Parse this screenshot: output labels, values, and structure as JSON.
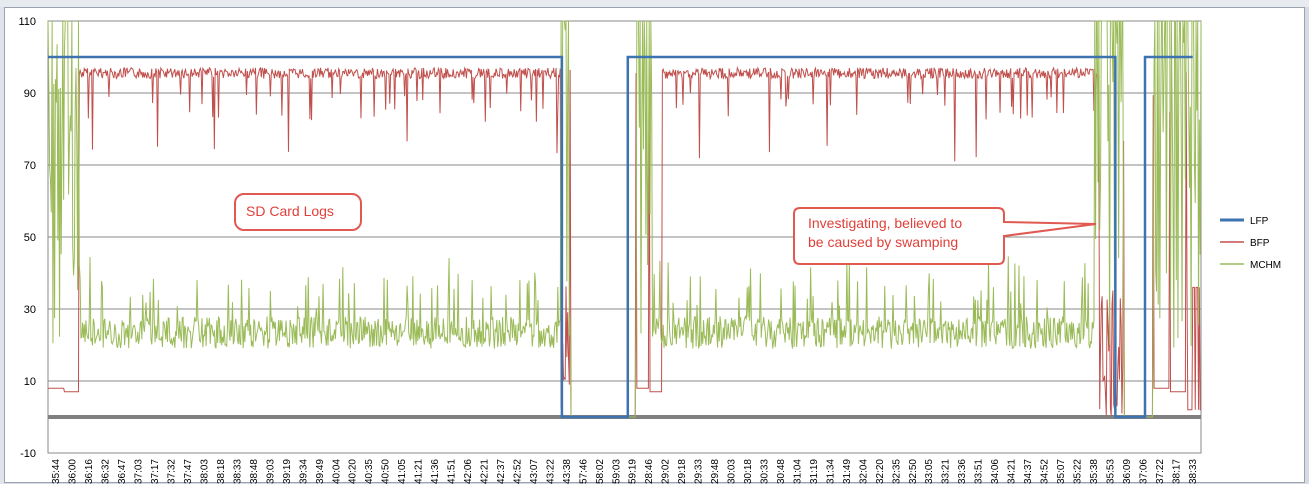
{
  "chart_data": {
    "type": "line",
    "ylim": [
      -10,
      110
    ],
    "yticks": [
      "110",
      "90",
      "70",
      "50",
      "30",
      "10",
      "-10"
    ],
    "ytick_values": [
      110,
      90,
      70,
      50,
      30,
      10,
      -10
    ],
    "x_labels": [
      "18:35:44",
      "18:36:00",
      "18:36:16",
      "18:36:32",
      "18:36:47",
      "18:37:03",
      "18:37:17",
      "18:37:32",
      "18:37:47",
      "18:38:03",
      "18:38:18",
      "18:38:33",
      "18:38:48",
      "18:39:03",
      "18:39:19",
      "18:39:34",
      "18:39:49",
      "18:40:04",
      "18:40:20",
      "18:40:35",
      "18:40:50",
      "18:41:05",
      "18:41:21",
      "18:41:36",
      "18:41:51",
      "18:42:06",
      "18:42:21",
      "18:42:37",
      "18:42:52",
      "18:43:07",
      "18:43:22",
      "18:43:38",
      "18:57:46",
      "18:58:02",
      "18:59:03",
      "18:59:19",
      "19:28:46",
      "19:29:02",
      "19:29:18",
      "19:29:33",
      "19:29:48",
      "19:30:03",
      "19:30:18",
      "19:30:33",
      "19:30:48",
      "19:31:04",
      "19:31:19",
      "19:31:34",
      "19:31:49",
      "19:32:04",
      "19:32:20",
      "19:32:35",
      "19:32:50",
      "19:33:05",
      "19:33:21",
      "19:33:36",
      "19:33:51",
      "19:34:06",
      "19:34:21",
      "19:34:37",
      "19:34:52",
      "19:35:07",
      "19:35:22",
      "19:35:38",
      "19:35:53",
      "19:36:09",
      "19:37:06",
      "19:37:22",
      "19:38:17",
      "19:38:33"
    ],
    "series": [
      {
        "name": "LFP",
        "color": "#3d74b0",
        "segments": [
          {
            "from": 0,
            "to": 31.2,
            "value": 100
          },
          {
            "from": 31.2,
            "to": 35.2,
            "value": 0
          },
          {
            "from": 35.2,
            "to": 64.8,
            "value": 100
          },
          {
            "from": 64.8,
            "to": 66.6,
            "value": 0
          },
          {
            "from": 66.6,
            "to": 69.5,
            "value": 100
          }
        ]
      },
      {
        "name": "BFP",
        "color": "#c0504d",
        "typical_range": [
          80,
          100
        ],
        "min": 71
      },
      {
        "name": "MCHM",
        "color": "#9bbb59",
        "typical_range": [
          18,
          30
        ],
        "max": 110
      }
    ],
    "legend_position": "right"
  },
  "annotations": [
    {
      "id": "sd-card",
      "text": [
        "SD Card Logs"
      ]
    },
    {
      "id": "swamping",
      "text": [
        "Investigating, believed to",
        "be caused by swamping"
      ]
    }
  ]
}
